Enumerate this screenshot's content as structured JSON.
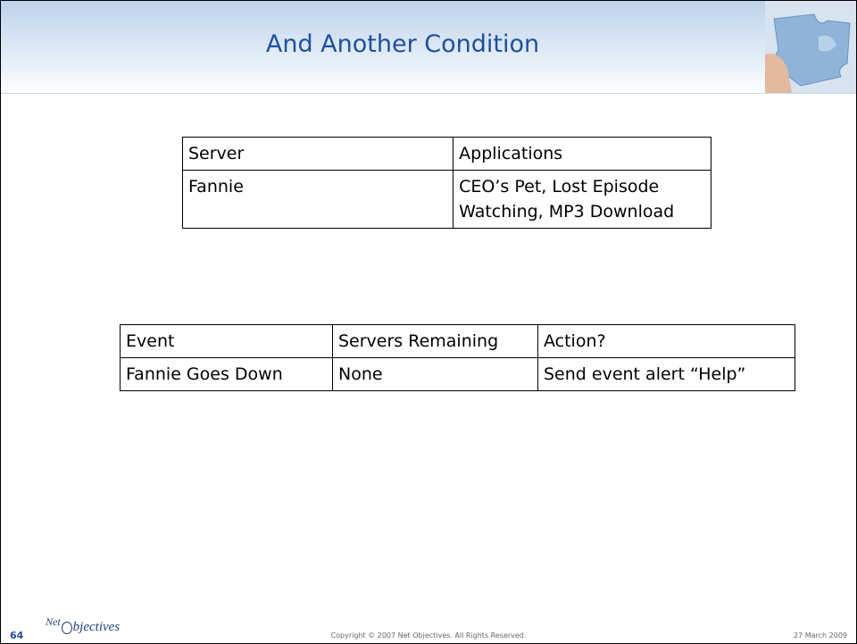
{
  "header": {
    "title": "And Another Condition"
  },
  "tables": [
    {
      "headers": [
        "Server",
        "Applications"
      ],
      "rows": [
        [
          "Fannie",
          "CEO’s Pet, Lost Episode Watching, MP3 Download"
        ]
      ]
    },
    {
      "headers": [
        "Event",
        "Servers Remaining",
        "Action?"
      ],
      "rows": [
        [
          "Fannie Goes Down",
          "None",
          "Send event alert “Help”"
        ]
      ]
    }
  ],
  "footer": {
    "page_number": "64",
    "logo": [
      "Net",
      "bjectives"
    ],
    "copyright": "Copyright © 2007 Net Objectives. All Rights Reserved.",
    "date": "27 March 2009"
  }
}
